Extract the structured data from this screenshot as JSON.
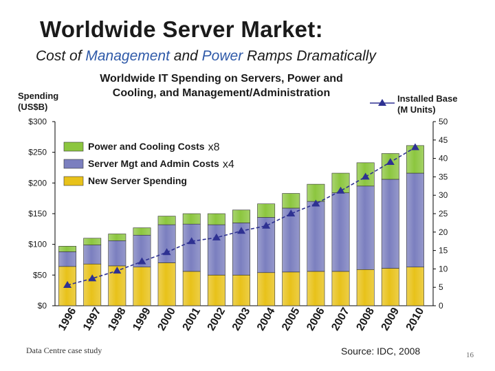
{
  "slide": {
    "title": "Worldwide Server Market:",
    "subtitle_parts": [
      "Cost of ",
      "Management",
      " and ",
      "Power",
      " Ramps Dramatically"
    ],
    "footer_left": "Data Centre case study",
    "source": "Source: IDC, 2008",
    "page_number": "16"
  },
  "colors": {
    "new_server": "#e8c21a",
    "server_mgmt": "#7b7fbf",
    "power_cooling": "#8cc63f",
    "installed_base": "#2e3192",
    "accent": "#2e59a8"
  },
  "chart_data": {
    "type": "bar",
    "stacked": true,
    "title": "Worldwide IT Spending on Servers, Power and Cooling, and Management/Administration",
    "title_lines": [
      "Worldwide IT Spending on Servers, Power and",
      "Cooling, and Management/Administration"
    ],
    "ylabel_lines": [
      "Spending",
      "(US$B)"
    ],
    "y2label_lines": [
      "Installed Base",
      "(M Units)"
    ],
    "categories": [
      "1996",
      "1997",
      "1998",
      "1999",
      "2000",
      "2001",
      "2002",
      "2003",
      "2004",
      "2005",
      "2006",
      "2007",
      "2008",
      "2009",
      "2010"
    ],
    "ylim": [
      0,
      300
    ],
    "yticks": [
      "$0",
      "$50",
      "$100",
      "$150",
      "$200",
      "$250",
      "$300"
    ],
    "y2lim": [
      0,
      50
    ],
    "y2ticks": [
      "0",
      "5",
      "10",
      "15",
      "20",
      "25",
      "30",
      "35",
      "40",
      "45",
      "50"
    ],
    "series": [
      {
        "name": "New Server Spending",
        "color_key": "new_server",
        "values": [
          64,
          68,
          65,
          63,
          70,
          56,
          50,
          50,
          54,
          55,
          56,
          56,
          59,
          61,
          63
        ]
      },
      {
        "name": "Server Mgt and Admin Costs",
        "color_key": "server_mgmt",
        "values": [
          24,
          31,
          41,
          52,
          62,
          77,
          82,
          85,
          90,
          104,
          114,
          128,
          136,
          145,
          153
        ]
      },
      {
        "name": "Power and Cooling Costs",
        "color_key": "power_cooling",
        "values": [
          9,
          11,
          11,
          12,
          14,
          17,
          18,
          21,
          22,
          24,
          28,
          32,
          38,
          42,
          45
        ]
      }
    ],
    "line_series": {
      "name": "Installed Base (M Units)",
      "values": [
        5.6,
        7.4,
        9.5,
        12.0,
        14.5,
        17.5,
        18.5,
        20.3,
        21.7,
        25.0,
        27.7,
        31.2,
        35.0,
        39.0,
        43.0
      ]
    },
    "legend": [
      {
        "label": "Power and Cooling Costs",
        "multiplier": "x8",
        "color_key": "power_cooling"
      },
      {
        "label": "Server Mgt and Admin Costs",
        "multiplier": "x4",
        "color_key": "server_mgmt"
      },
      {
        "label": "New Server Spending",
        "multiplier": "",
        "color_key": "new_server"
      }
    ]
  }
}
